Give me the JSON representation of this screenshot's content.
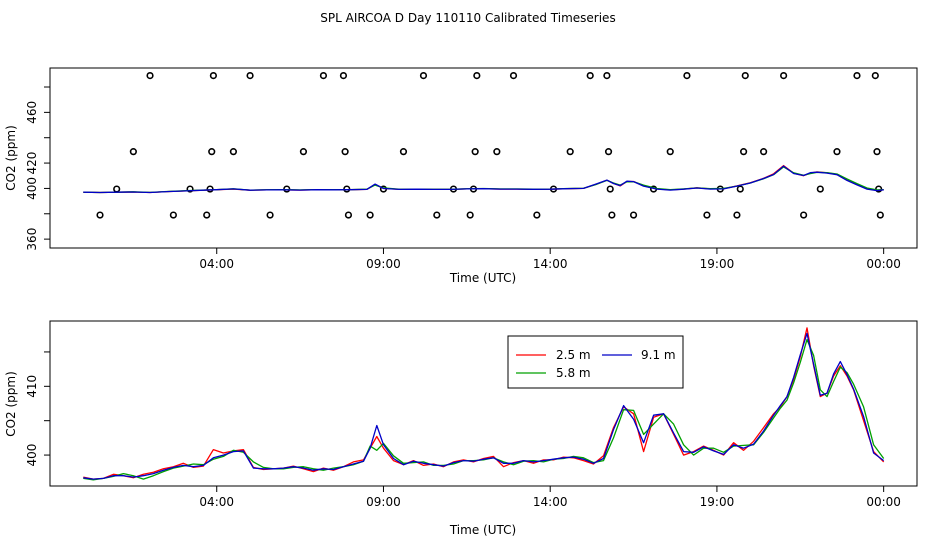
{
  "chart_data": [
    {
      "type": "line",
      "title": "SPL AIRCOA D  Day 110110  Calibrated Timeseries",
      "xlabel": "Time (UTC)",
      "ylabel": "CO2 (ppm)",
      "xlim": [
        -1.0,
        25.0
      ],
      "ylim": [
        353,
        495
      ],
      "x_ticks": [
        4,
        9,
        14,
        19,
        24
      ],
      "x_tick_labels": [
        "04:00",
        "09:00",
        "14:00",
        "19:00",
        "00:00"
      ],
      "y_ticks": [
        360,
        380,
        400,
        420,
        440,
        460,
        480
      ],
      "y_tick_labels": [
        "360",
        "",
        "400",
        "420",
        "",
        "460",
        ""
      ],
      "line_x": [
        0.0,
        0.5,
        1.0,
        1.5,
        2.0,
        2.5,
        3.0,
        3.5,
        4.0,
        4.5,
        5.0,
        5.5,
        6.0,
        6.5,
        7.0,
        7.5,
        8.0,
        8.5,
        8.75,
        9.0,
        9.5,
        10.0,
        10.5,
        11.0,
        11.5,
        12.0,
        12.5,
        13.0,
        13.5,
        14.0,
        14.5,
        15.0,
        15.4,
        15.7,
        15.9,
        16.1,
        16.3,
        16.5,
        16.8,
        17.2,
        17.6,
        18.0,
        18.4,
        18.8,
        19.2,
        19.6,
        20.0,
        20.4,
        20.7,
        21.0,
        21.3,
        21.6,
        21.8,
        22.0,
        22.3,
        22.6,
        22.9,
        23.2,
        23.5,
        23.8,
        24.0
      ],
      "series": [
        {
          "name": "2.5 m",
          "color": "#ff0000",
          "values": [
            397,
            396.8,
            397,
            397.2,
            396.8,
            397.5,
            398,
            398.5,
            399,
            399.5,
            398.6,
            398.8,
            398.9,
            398.7,
            399,
            398.9,
            399,
            399.2,
            403,
            400,
            399.2,
            399.4,
            399.2,
            399.2,
            399.6,
            399.8,
            399.5,
            399.5,
            399.3,
            399.4,
            399.8,
            400,
            403.5,
            406.5,
            404,
            402,
            405.5,
            405.5,
            402,
            399.6,
            398.8,
            399.5,
            400.5,
            399.6,
            399.8,
            402,
            404.5,
            408,
            411.5,
            418,
            412,
            410,
            412,
            413,
            412.3,
            411,
            406.5,
            403,
            399.7,
            398.5,
            399
          ]
        },
        {
          "name": "5.8 m",
          "color": "#00a000",
          "values": [
            397,
            396.8,
            397,
            397.3,
            396.9,
            397.6,
            398.1,
            398.6,
            399.1,
            399.7,
            398.7,
            398.9,
            399,
            398.8,
            399.1,
            399,
            399.1,
            399.4,
            402.6,
            400.4,
            399.3,
            399.5,
            399.3,
            399.3,
            399.7,
            399.9,
            399.6,
            399.6,
            399.4,
            399.5,
            399.9,
            400.1,
            403.3,
            406.3,
            404.3,
            402.6,
            405.2,
            405.3,
            402.6,
            399.9,
            399,
            399.6,
            400.4,
            399.8,
            400,
            401.8,
            404.3,
            407.6,
            410.8,
            417,
            412.3,
            410.4,
            411.7,
            412.7,
            412.4,
            411.4,
            407.5,
            403.8,
            400.3,
            398.8,
            399.1
          ]
        },
        {
          "name": "9.1 m",
          "color": "#0000c8",
          "values": [
            397,
            396.8,
            397,
            397.2,
            396.8,
            397.5,
            398,
            398.5,
            399,
            399.6,
            398.6,
            398.8,
            398.9,
            398.7,
            399,
            398.9,
            399,
            399.2,
            403.4,
            399.9,
            399.2,
            399.4,
            399.2,
            399.2,
            399.6,
            399.8,
            399.5,
            399.5,
            399.3,
            399.4,
            399.8,
            400,
            403.7,
            406.6,
            403.9,
            402.2,
            405.7,
            405.4,
            401.8,
            399.5,
            398.7,
            399.4,
            400.3,
            399.5,
            399.6,
            401.8,
            404.3,
            407.8,
            411,
            417.6,
            411.8,
            410.2,
            412.4,
            412.8,
            412.1,
            410.8,
            406.3,
            402.8,
            399.5,
            398.3,
            398.9
          ]
        }
      ],
      "scatter_points": [
        [
          0.5,
          379
        ],
        [
          1.0,
          399.5
        ],
        [
          1.5,
          429
        ],
        [
          2.0,
          489
        ],
        [
          2.7,
          379
        ],
        [
          3.2,
          399.5
        ],
        [
          3.7,
          379
        ],
        [
          3.8,
          399.5
        ],
        [
          3.85,
          429
        ],
        [
          3.9,
          489
        ],
        [
          4.5,
          429
        ],
        [
          5.0,
          489
        ],
        [
          5.6,
          379
        ],
        [
          6.1,
          399.5
        ],
        [
          6.6,
          429
        ],
        [
          7.2,
          489
        ],
        [
          7.8,
          489
        ],
        [
          7.85,
          429
        ],
        [
          7.9,
          399.5
        ],
        [
          7.95,
          379
        ],
        [
          8.6,
          379
        ],
        [
          9.0,
          399.5
        ],
        [
          9.6,
          429
        ],
        [
          10.2,
          489
        ],
        [
          10.6,
          379
        ],
        [
          11.1,
          399.5
        ],
        [
          11.6,
          379
        ],
        [
          11.7,
          399.5
        ],
        [
          11.75,
          429
        ],
        [
          11.8,
          489
        ],
        [
          12.4,
          429
        ],
        [
          12.9,
          489
        ],
        [
          13.6,
          379
        ],
        [
          14.1,
          399.5
        ],
        [
          14.6,
          429
        ],
        [
          15.2,
          489
        ],
        [
          15.7,
          489
        ],
        [
          15.75,
          429
        ],
        [
          15.8,
          399.5
        ],
        [
          15.85,
          379
        ],
        [
          16.5,
          379
        ],
        [
          17.1,
          399.5
        ],
        [
          17.6,
          429
        ],
        [
          18.1,
          489
        ],
        [
          18.7,
          379
        ],
        [
          19.1,
          399.5
        ],
        [
          19.6,
          379
        ],
        [
          19.7,
          399.5
        ],
        [
          19.8,
          429
        ],
        [
          19.85,
          489
        ],
        [
          20.4,
          429
        ],
        [
          21.0,
          489
        ],
        [
          21.6,
          379
        ],
        [
          22.1,
          399.5
        ],
        [
          22.6,
          429
        ],
        [
          23.2,
          489
        ],
        [
          23.75,
          489
        ],
        [
          23.8,
          429
        ],
        [
          23.85,
          399.5
        ],
        [
          23.9,
          379
        ]
      ]
    },
    {
      "type": "line",
      "title": "",
      "xlabel": "Time (UTC)",
      "ylabel": "CO2 (ppm)",
      "xlim": [
        -1.0,
        25.0
      ],
      "ylim": [
        395.5,
        419.5
      ],
      "x_ticks": [
        4,
        9,
        14,
        19,
        24
      ],
      "x_tick_labels": [
        "04:00",
        "09:00",
        "14:00",
        "19:00",
        "00:00"
      ],
      "y_ticks": [
        400,
        405,
        410,
        415
      ],
      "y_tick_labels": [
        "400",
        "",
        "410",
        ""
      ],
      "legend": [
        {
          "label": "2.5 m",
          "color": "#ff0000"
        },
        {
          "label": "5.8 m",
          "color": "#00a000"
        },
        {
          "label": "9.1 m",
          "color": "#0000c8"
        }
      ],
      "legend_position": "top-right",
      "line_x": [
        0.0,
        0.3,
        0.6,
        0.9,
        1.2,
        1.5,
        1.8,
        2.1,
        2.4,
        2.7,
        3.0,
        3.3,
        3.6,
        3.9,
        4.2,
        4.5,
        4.8,
        5.1,
        5.4,
        5.7,
        6.0,
        6.3,
        6.6,
        6.9,
        7.2,
        7.5,
        7.8,
        8.1,
        8.4,
        8.6,
        8.8,
        9.0,
        9.3,
        9.6,
        9.9,
        10.2,
        10.5,
        10.8,
        11.1,
        11.4,
        11.7,
        12.0,
        12.3,
        12.6,
        12.9,
        13.2,
        13.5,
        13.8,
        14.1,
        14.4,
        14.7,
        15.0,
        15.3,
        15.6,
        15.9,
        16.2,
        16.5,
        16.8,
        17.1,
        17.4,
        17.7,
        18.0,
        18.3,
        18.6,
        18.9,
        19.2,
        19.5,
        19.8,
        20.1,
        20.4,
        20.7,
        20.9,
        21.1,
        21.3,
        21.5,
        21.7,
        21.9,
        22.1,
        22.3,
        22.5,
        22.7,
        22.9,
        23.1,
        23.4,
        23.7,
        24.0
      ],
      "series": [
        {
          "name": "2.5 m",
          "color": "#ff0000",
          "values": [
            396.8,
            396.5,
            396.6,
            397.2,
            397.0,
            396.7,
            397.2,
            397.5,
            398.0,
            398.3,
            398.8,
            398.2,
            398.4,
            400.8,
            400.3,
            400.6,
            400.8,
            398.2,
            397.9,
            398.0,
            398.1,
            398.4,
            398.0,
            397.6,
            398.1,
            397.8,
            398.3,
            399.0,
            399.3,
            401.0,
            402.7,
            401.0,
            399.2,
            398.6,
            399.2,
            398.5,
            398.7,
            398.3,
            399.0,
            399.3,
            399.0,
            399.5,
            399.8,
            398.3,
            398.9,
            399.2,
            398.8,
            399.3,
            399.3,
            399.7,
            399.6,
            399.2,
            398.7,
            399.9,
            404.0,
            407.0,
            406.0,
            400.5,
            405.5,
            406.0,
            403.0,
            400.0,
            400.5,
            401.3,
            400.7,
            400.0,
            401.8,
            400.7,
            402.0,
            404.0,
            406.0,
            407.0,
            408.5,
            411.0,
            414.3,
            418.5,
            413.0,
            408.5,
            409.0,
            411.5,
            413.0,
            411.5,
            409.5,
            405.0,
            400.5,
            399.0
          ]
        },
        {
          "name": "5.8 m",
          "color": "#00a000",
          "values": [
            396.6,
            396.4,
            396.6,
            396.9,
            397.3,
            397.0,
            396.5,
            397.0,
            397.6,
            398.1,
            398.4,
            398.7,
            398.6,
            399.4,
            399.8,
            400.7,
            400.4,
            399.0,
            398.2,
            398.0,
            398.0,
            398.2,
            398.3,
            398.0,
            397.8,
            398.1,
            398.3,
            398.6,
            399.1,
            401.3,
            400.7,
            401.7,
            399.9,
            398.8,
            398.9,
            399.0,
            398.5,
            398.5,
            398.7,
            399.2,
            399.2,
            399.3,
            399.6,
            399.0,
            398.6,
            399.1,
            399.2,
            399.0,
            399.4,
            399.5,
            399.8,
            399.6,
            398.9,
            399.2,
            402.5,
            406.6,
            406.5,
            403.0,
            404.5,
            406.0,
            404.5,
            401.5,
            400.0,
            401.0,
            401.0,
            400.4,
            401.3,
            401.4,
            401.5,
            403.3,
            405.4,
            406.8,
            408.0,
            410.5,
            413.5,
            416.8,
            414.5,
            409.5,
            408.5,
            410.7,
            412.8,
            412.0,
            410.3,
            407.0,
            401.5,
            399.5
          ]
        },
        {
          "name": "9.1 m",
          "color": "#0000c8",
          "values": [
            396.7,
            396.5,
            396.6,
            397.0,
            397.0,
            396.8,
            397.0,
            397.3,
            397.8,
            398.2,
            398.5,
            398.3,
            398.5,
            399.6,
            400.0,
            400.5,
            400.6,
            398.1,
            398.0,
            398.0,
            398.1,
            398.3,
            398.1,
            397.8,
            398.0,
            397.9,
            398.3,
            398.7,
            399.1,
            401.0,
            404.3,
            401.5,
            399.5,
            398.6,
            399.1,
            398.8,
            398.6,
            398.4,
            398.9,
            399.2,
            399.1,
            399.4,
            399.6,
            398.8,
            398.8,
            399.2,
            399.0,
            399.2,
            399.4,
            399.6,
            399.7,
            399.4,
            398.8,
            399.5,
            403.7,
            407.2,
            405.2,
            401.8,
            405.8,
            406.0,
            403.2,
            400.5,
            400.4,
            401.2,
            400.6,
            400.1,
            401.5,
            401.0,
            401.6,
            403.5,
            405.8,
            407.2,
            408.5,
            411.3,
            414.6,
            417.7,
            413.2,
            408.7,
            409.0,
            411.8,
            413.6,
            411.7,
            409.6,
            405.6,
            400.3,
            399.2
          ]
        }
      ]
    }
  ]
}
